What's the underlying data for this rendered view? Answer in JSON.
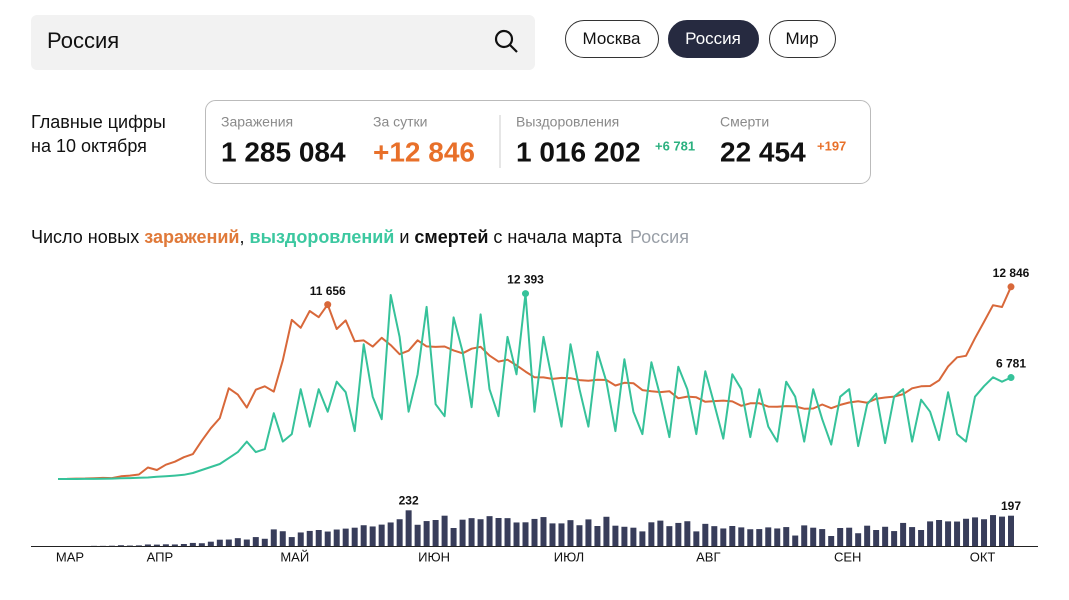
{
  "header": {
    "search": "Россия",
    "tabs": [
      "Москва",
      "Россия",
      "Мир"
    ],
    "active_tab": 1
  },
  "summary": {
    "title_lines": [
      "Главные цифры",
      "на 10 октября"
    ],
    "stats": [
      {
        "label": "Заражения",
        "value": "1 285 084"
      },
      {
        "label": "За сутки",
        "value": "+12 846"
      },
      {
        "label": "Выздоровления",
        "value": "1 016 202",
        "delta": "+6 781"
      },
      {
        "label": "Смерти",
        "value": "22 454",
        "delta": "+197"
      }
    ]
  },
  "chart_data": {
    "type": "line",
    "title_parts": [
      "Число новых ",
      "заражений",
      ", ",
      "выздоровлений",
      " и ",
      "смертей",
      " с начала марта"
    ],
    "subtitle": "Россия",
    "xlim": [
      0,
      106
    ],
    "xticks": [
      {
        "value": 0,
        "label": "МАР"
      },
      {
        "value": 10,
        "label": "АПР"
      },
      {
        "value": 25,
        "label": "МАЙ"
      },
      {
        "value": 40.5,
        "label": "ИЮН"
      },
      {
        "value": 55.5,
        "label": "ИЮЛ"
      },
      {
        "value": 71,
        "label": "АВГ"
      },
      {
        "value": 86.5,
        "label": "СЕН"
      },
      {
        "value": 101.5,
        "label": "ОКТ"
      }
    ],
    "ylim": [
      0,
      13300
    ],
    "y2lim": [
      0,
      260
    ],
    "series": [
      {
        "name": "заражений",
        "color": "#d8683a",
        "values": [
          2,
          6,
          30,
          33,
          54,
          71,
          57,
          182,
          228,
          302,
          771,
          601,
          954,
          1154,
          1459,
          1667,
          2558,
          3388,
          4070,
          6060,
          5642,
          4774,
          5966,
          6198,
          5841,
          7933,
          10633,
          10102,
          11231,
          10817,
          11656,
          10028,
          10598,
          9200,
          9263,
          8849,
          9434,
          8946,
          8338,
          8572,
          9268,
          8863,
          8831,
          8855,
          8595,
          8404,
          8706,
          8835,
          8248,
          7843,
          7972,
          7600,
          7176,
          6800,
          6791,
          6693,
          6760,
          6736,
          6611,
          6562,
          6635,
          6615,
          6248,
          6428,
          6406,
          5940,
          5862,
          5811,
          5871,
          5395,
          5509,
          5462,
          5159,
          5204,
          5241,
          5189,
          4892,
          5057,
          5061,
          4839,
          4828,
          4870,
          4852,
          4696,
          4711,
          4980,
          4729,
          4952,
          5110,
          5195,
          5099,
          5363,
          5449,
          5509,
          5670,
          6065,
          6196,
          6215,
          6595,
          7523,
          8135,
          8232,
          9412,
          10499,
          11615,
          11493,
          12846
        ],
        "value_labels": {
          "30": "11 656",
          "106": "12 846"
        }
      },
      {
        "name": "выздоровлений",
        "color": "#36c29a",
        "values": [
          0,
          0,
          0,
          5,
          10,
          20,
          30,
          50,
          60,
          90,
          100,
          150,
          190,
          230,
          280,
          400,
          600,
          800,
          1000,
          1400,
          1800,
          2500,
          1800,
          2000,
          4400,
          2500,
          3000,
          6000,
          3500,
          6000,
          4500,
          6500,
          5800,
          3200,
          9000,
          5500,
          4000,
          12300,
          9500,
          4500,
          7000,
          11500,
          5000,
          4200,
          10800,
          8500,
          4800,
          11000,
          6000,
          4200,
          9500,
          7000,
          12393,
          4500,
          9500,
          6500,
          3500,
          9000,
          6000,
          3500,
          8500,
          6500,
          3200,
          8000,
          4500,
          3000,
          7800,
          5500,
          2800,
          7500,
          6000,
          3000,
          7200,
          5000,
          2700,
          7000,
          6000,
          2800,
          6000,
          3500,
          2500,
          6500,
          5500,
          2500,
          6000,
          4000,
          2300,
          5500,
          6000,
          2200,
          5000,
          5700,
          2400,
          5500,
          6000,
          2500,
          5300,
          4500,
          2600,
          5800,
          3000,
          2500,
          5500,
          6200,
          6800,
          6500,
          6781
        ],
        "value_labels": {
          "52": "12 393",
          "106": "6 781"
        }
      },
      {
        "name": "смертей",
        "type": "bar",
        "axis": "y2",
        "color": "#383d5a",
        "values": [
          0,
          0,
          0,
          0,
          1,
          1,
          2,
          5,
          3,
          4,
          10,
          9,
          11,
          10,
          13,
          20,
          18,
          28,
          41,
          42,
          51,
          42,
          58,
          47,
          108,
          96,
          58,
          88,
          98,
          104,
          94,
          107,
          113,
          119,
          135,
          127,
          139,
          153,
          174,
          232,
          138,
          162,
          169,
          197,
          117,
          171,
          181,
          174,
          194,
          182,
          181,
          153,
          154,
          176,
          188,
          147,
          147,
          168,
          135,
          173,
          130,
          190,
          132,
          125,
          119,
          95,
          154,
          165,
          129,
          150,
          161,
          95,
          144,
          129,
          114,
          130,
          121,
          109,
          110,
          121,
          114,
          123,
          68,
          134,
          119,
          110,
          65,
          117,
          119,
          83,
          132,
          104,
          125,
          97,
          150,
          123,
          104,
          160,
          169,
          160,
          159,
          177,
          186,
          174,
          201,
          191,
          197
        ],
        "value_labels": {
          "39": "232",
          "106": "197"
        }
      }
    ]
  }
}
